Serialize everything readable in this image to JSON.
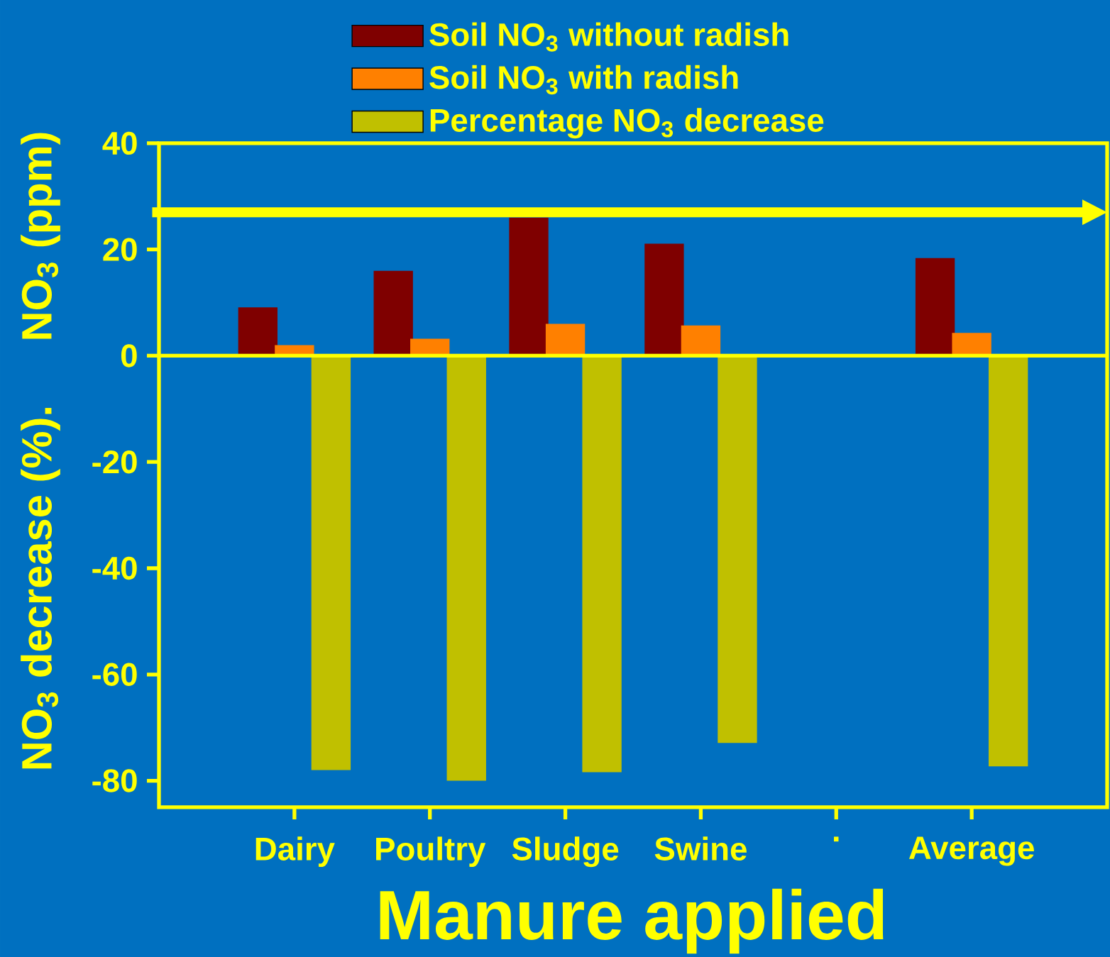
{
  "chart_data": {
    "type": "bar",
    "categories": [
      "Dairy",
      "Poultry",
      "Sludge",
      "Swine",
      ".",
      "Average"
    ],
    "series": [
      {
        "name": "Soil NO$_{3}$ without radish",
        "color": "#7f0000",
        "values": [
          9.1,
          16,
          26,
          21.1,
          null,
          18.4
        ]
      },
      {
        "name": "Soil NO$_{3}$ with radish",
        "color": "#ff8000",
        "values": [
          2,
          3.2,
          6,
          5.7,
          null,
          4.3
        ]
      },
      {
        "name": "Percentage NO$_{3}$ decrease",
        "color": "#c0c000",
        "values": [
          -78,
          -80,
          -78.4,
          -72.9,
          null,
          -77.3
        ]
      }
    ],
    "xlabel": "Manure applied",
    "ylabel": "NO$_{3}$ (ppm)",
    "annotations": [
      "NO$_{3}$ decrease (%)."
    ],
    "ylim": [
      -85,
      40
    ],
    "yticks": [
      -80,
      -60,
      -40,
      -20,
      0,
      20,
      40
    ],
    "ref_lines": [
      {
        "axis": "y",
        "value": 27,
        "color": "#ffff00"
      },
      {
        "axis": "y",
        "value": 0,
        "color": "#ffff00"
      }
    ],
    "legend": "top"
  }
}
